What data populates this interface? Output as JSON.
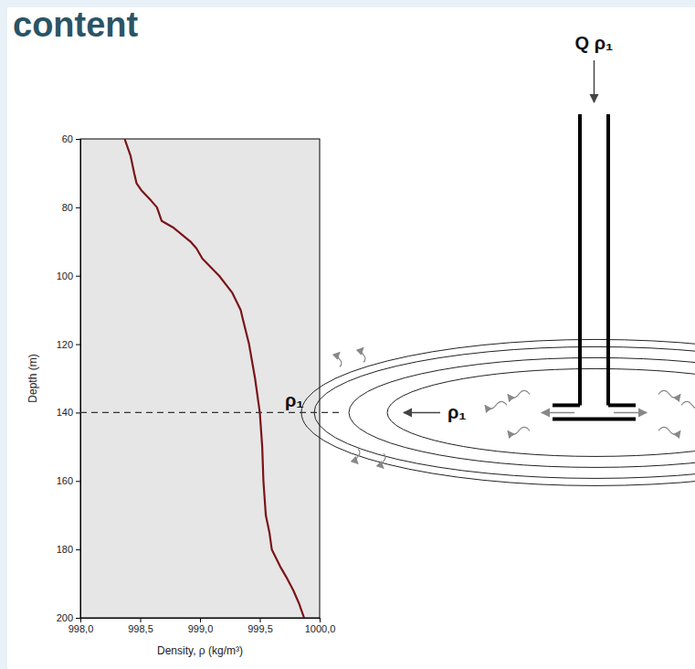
{
  "chart_data": {
    "type": "line",
    "title": "content",
    "x_label": "Density, ρ (kg/m³)",
    "y_label": "Depth (m)",
    "xlim": [
      998.0,
      1000.0
    ],
    "xticks": [
      {
        "value": 998.0,
        "label": "998,0"
      },
      {
        "value": 998.5,
        "label": "998,5"
      },
      {
        "value": 999.0,
        "label": "999,0"
      },
      {
        "value": 999.5,
        "label": "999,5"
      },
      {
        "value": 1000.0,
        "label": "1000,0"
      }
    ],
    "ylim": [
      200,
      60
    ],
    "yticks": [
      60,
      80,
      100,
      120,
      140,
      160,
      180,
      200
    ],
    "grid": false,
    "x": [
      998.37,
      998.42,
      998.45,
      998.47,
      998.51,
      998.59,
      998.64,
      998.68,
      998.78,
      998.85,
      998.92,
      998.97,
      999.02,
      999.16,
      999.27,
      999.34,
      999.36,
      999.41,
      999.46,
      999.5,
      999.52,
      999.53,
      999.55,
      999.58,
      999.6,
      999.67,
      999.72,
      999.78,
      999.83,
      999.87
    ],
    "series": [
      {
        "color": "#7a1418",
        "values": [
          60,
          65,
          70,
          73,
          75,
          78,
          80,
          84,
          86,
          88,
          90,
          92,
          95,
          100,
          105,
          110,
          113,
          120,
          130,
          140,
          150,
          160,
          170,
          175,
          180,
          185,
          188,
          192,
          196,
          200
        ]
      }
    ],
    "annotations": [
      {
        "text": "ρ₁",
        "y": 140
      },
      {
        "text": "ρ₁"
      },
      {
        "text": "Q ρ₁"
      }
    ]
  }
}
